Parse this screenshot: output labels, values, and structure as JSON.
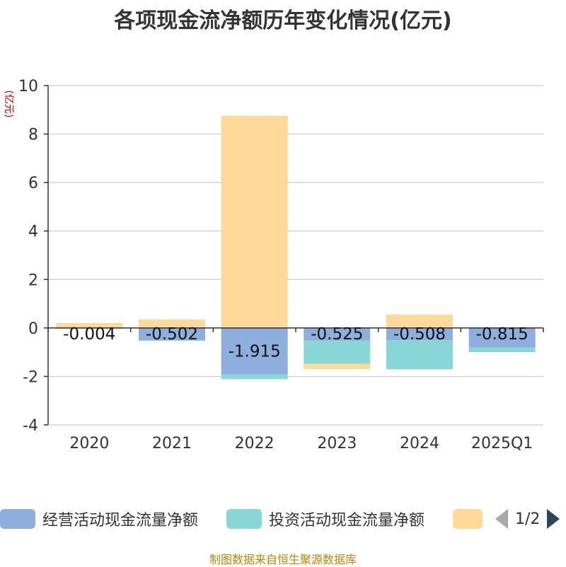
{
  "chart_data": {
    "type": "bar",
    "stacked": true,
    "title": "各项现金流净额历年变化情况(亿元)",
    "ylabel": "(亿元)",
    "xlabel": "",
    "ylim": [
      -4,
      10
    ],
    "yticks": [
      -4,
      -2,
      0,
      2,
      4,
      6,
      8,
      10
    ],
    "categories": [
      "2020",
      "2021",
      "2022",
      "2023",
      "2024",
      "2025Q1"
    ],
    "series": [
      {
        "name": "经营活动现金流量净额",
        "color": "#8eaedd",
        "values": [
          -0.004,
          -0.502,
          -1.915,
          -0.525,
          -0.508,
          -0.815
        ],
        "labels": [
          "-0.004",
          "-0.502",
          "-1.915",
          "-0.525",
          "-0.508",
          "-0.815"
        ]
      },
      {
        "name": "投资活动现金流量净额",
        "color": "#88d6d6",
        "values": [
          0,
          -0.03,
          -0.2,
          -0.95,
          -1.2,
          -0.18
        ]
      },
      {
        "name": "",
        "color": "#ffd999",
        "values": [
          0.2,
          0.35,
          8.75,
          -0.22,
          0.55,
          0
        ]
      }
    ],
    "grid": true,
    "legend_position": "bottom"
  },
  "legend": {
    "items": [
      {
        "label": "经营活动现金流量净额",
        "color": "#8eaedd"
      },
      {
        "label": "投资活动现金流量净额",
        "color": "#88d6d6"
      },
      {
        "label": "",
        "color": "#ffd999"
      }
    ],
    "page_indicator": "1/2"
  },
  "footer": {
    "source": "制图数据来自恒生聚源数据库"
  }
}
